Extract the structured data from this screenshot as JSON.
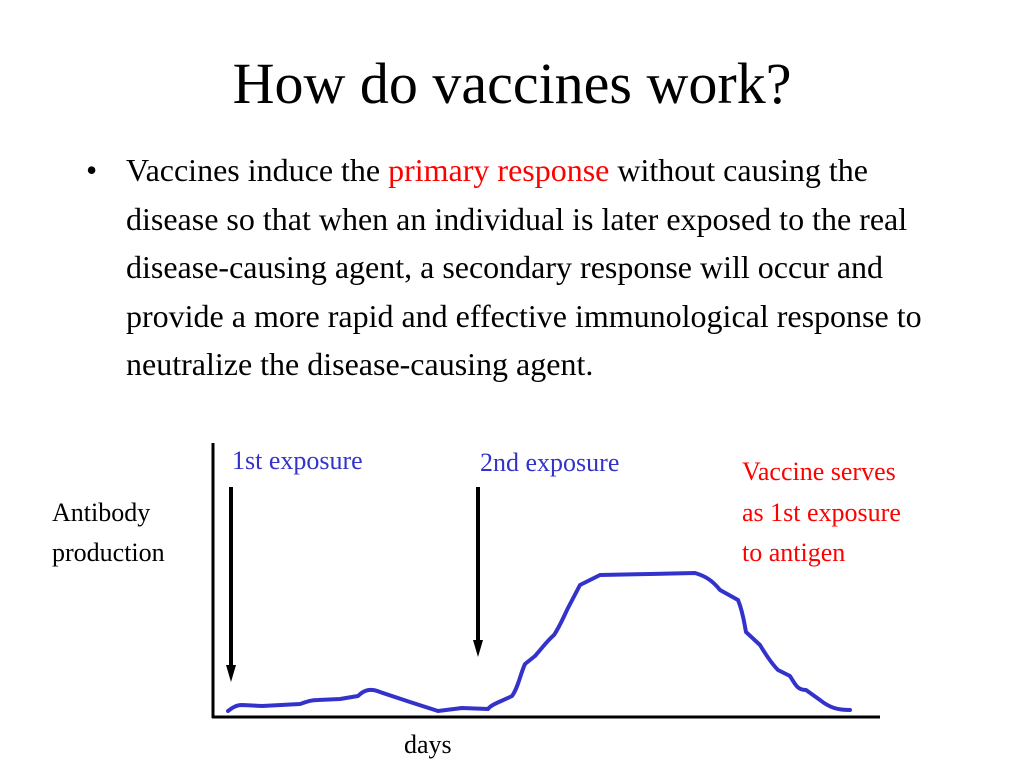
{
  "slide": {
    "title": "How do vaccines work?"
  },
  "bullet": {
    "marker": "•",
    "text_before": "Vaccines induce the ",
    "highlight": "primary response",
    "text_after": " without causing the disease so that when an individual is later exposed to the real disease-causing agent, a secondary response will occur and provide a more rapid and effective immunological response to neutralize the disease-causing agent."
  },
  "figure": {
    "y_axis_label_line1": "Antibody",
    "y_axis_label_line2": "production",
    "x_axis_label": "days",
    "first_exposure_label": "1st exposure",
    "second_exposure_label": "2nd exposure",
    "note_line1": "Vaccine serves",
    "note_line2": "as 1st exposure",
    "note_line3": "to antigen"
  },
  "colors": {
    "curve": "#3333cc",
    "highlight": "#ff0000",
    "axes": "#000000"
  }
}
